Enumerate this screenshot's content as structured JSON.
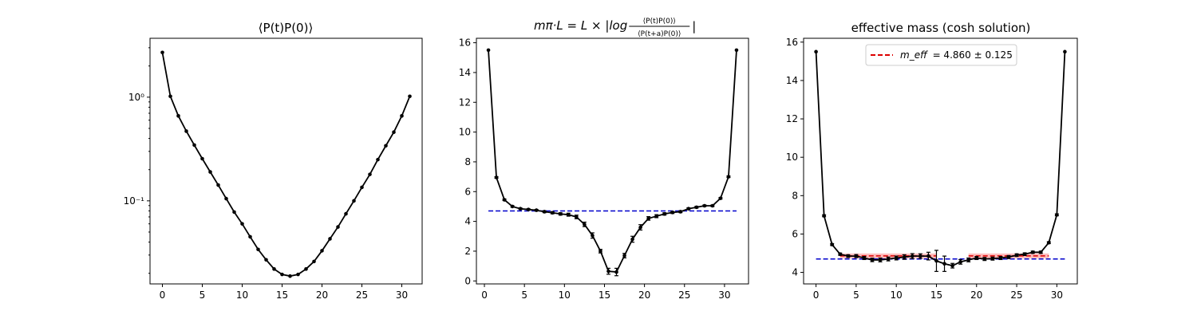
{
  "colors": {
    "series": "#000000",
    "fit_line": "#0000cc",
    "plateau": "#ff6a6a",
    "legend_line": "#dd0000"
  },
  "chart_data": [
    {
      "type": "line",
      "title": "⟨P(t)P(0)⟩",
      "yscale": "log",
      "xlim": [
        -1.55,
        32.55
      ],
      "ylim": [
        0.0158,
        3.7
      ],
      "xticks": [
        0,
        5,
        10,
        15,
        20,
        25,
        30
      ],
      "yticks": [
        {
          "value": 1,
          "label": "10⁰"
        },
        {
          "value": 0.1,
          "label": "10⁻¹"
        }
      ],
      "series": [
        {
          "x": [
            0,
            1,
            2,
            3,
            4,
            5,
            6,
            7,
            8,
            9,
            10,
            11,
            12,
            13,
            14,
            15,
            16,
            17,
            18,
            19,
            20,
            21,
            22,
            23,
            24,
            25,
            26,
            27,
            28,
            29,
            30,
            31
          ],
          "y": [
            2.7,
            1.02,
            0.66,
            0.47,
            0.345,
            0.255,
            0.19,
            0.142,
            0.105,
            0.078,
            0.06,
            0.045,
            0.034,
            0.027,
            0.022,
            0.0195,
            0.0188,
            0.0195,
            0.022,
            0.026,
            0.033,
            0.043,
            0.056,
            0.075,
            0.1,
            0.135,
            0.18,
            0.25,
            0.34,
            0.46,
            0.66,
            1.02
          ]
        }
      ]
    },
    {
      "type": "line",
      "title": "m_π·L = L × |log ⟨P(t)P(0)⟩ / ⟨P(t+a)P(0)⟩|",
      "title_parts": {
        "lhs": "mπ·L = L × |log",
        "numerator": "⟨P(t)P(0)⟩",
        "denominator": "⟨P(t+a)P(0)⟩",
        "rhs": "|"
      },
      "xlim": [
        -1.0,
        33.0
      ],
      "ylim": [
        -0.2,
        16.3
      ],
      "xticks": [
        0,
        5,
        10,
        15,
        20,
        25,
        30
      ],
      "yticks": [
        0,
        2,
        4,
        6,
        8,
        10,
        12,
        14,
        16
      ],
      "series": [
        {
          "x": [
            0.5,
            1.5,
            2.5,
            3.5,
            4.5,
            5.5,
            6.5,
            7.5,
            8.5,
            9.5,
            10.5,
            11.5,
            12.5,
            13.5,
            14.5,
            15.5,
            16.5,
            17.5,
            18.5,
            19.5,
            20.5,
            21.5,
            22.5,
            23.5,
            24.5,
            25.5,
            26.5,
            27.5,
            28.5,
            29.5,
            30.5,
            31.5
          ],
          "y": [
            15.5,
            6.95,
            5.45,
            5.0,
            4.85,
            4.8,
            4.75,
            4.65,
            4.58,
            4.5,
            4.45,
            4.3,
            3.8,
            3.05,
            2.0,
            0.65,
            0.6,
            1.7,
            2.8,
            3.6,
            4.2,
            4.35,
            4.5,
            4.6,
            4.65,
            4.85,
            4.95,
            5.05,
            5.05,
            5.55,
            7.0,
            15.5
          ],
          "yerr": [
            0,
            0.05,
            0.05,
            0.05,
            0.05,
            0.05,
            0.05,
            0.06,
            0.07,
            0.08,
            0.1,
            0.12,
            0.15,
            0.18,
            0.12,
            0.2,
            0.25,
            0.15,
            0.2,
            0.18,
            0.12,
            0.1,
            0.08,
            0.07,
            0.06,
            0.06,
            0.06,
            0.05,
            0.05,
            0.05,
            0.05,
            0
          ]
        }
      ],
      "hlines": [
        {
          "y": 4.7,
          "xmin": 0.5,
          "xmax": 31.5,
          "style": "dashed",
          "color": "#0000cc"
        }
      ]
    },
    {
      "type": "line",
      "title": "effective mass (cosh solution)",
      "xlim": [
        -1.55,
        32.55
      ],
      "ylim": [
        3.4,
        16.2
      ],
      "xticks": [
        0,
        5,
        10,
        15,
        20,
        25,
        30
      ],
      "yticks": [
        4,
        6,
        8,
        10,
        12,
        14,
        16
      ],
      "legend": {
        "position": "top-center",
        "label_symbol": "m_eff",
        "label_value": "= 4.860 ± 0.125"
      },
      "series": [
        {
          "x": [
            0,
            1,
            2,
            3,
            4,
            5,
            6,
            7,
            8,
            9,
            10,
            11,
            12,
            13,
            14,
            15,
            16,
            17,
            18,
            19,
            20,
            21,
            22,
            23,
            24,
            25,
            26,
            27,
            28,
            29,
            30,
            31
          ],
          "y": [
            15.5,
            6.95,
            5.45,
            4.95,
            4.85,
            4.85,
            4.75,
            4.65,
            4.65,
            4.7,
            4.75,
            4.8,
            4.85,
            4.85,
            4.85,
            4.6,
            4.45,
            4.35,
            4.55,
            4.65,
            4.75,
            4.7,
            4.72,
            4.75,
            4.8,
            4.9,
            4.95,
            5.05,
            5.05,
            5.55,
            7.0,
            15.5
          ],
          "yerr": [
            0,
            0.05,
            0.05,
            0.06,
            0.07,
            0.08,
            0.08,
            0.09,
            0.1,
            0.1,
            0.1,
            0.12,
            0.13,
            0.12,
            0.2,
            0.55,
            0.4,
            0.12,
            0.12,
            0.1,
            0.08,
            0.08,
            0.08,
            0.08,
            0.08,
            0.07,
            0.07,
            0.06,
            0.06,
            0.05,
            0.05,
            0
          ]
        }
      ],
      "plateaus": [
        {
          "xmin": 3,
          "xmax": 15,
          "y": 4.86,
          "band": 0.125
        },
        {
          "xmin": 19,
          "xmax": 29,
          "y": 4.86,
          "band": 0.125
        }
      ],
      "hlines": [
        {
          "y": 4.7,
          "xmin": 0,
          "xmax": 31,
          "style": "dashed",
          "color": "#0000cc"
        }
      ]
    }
  ]
}
